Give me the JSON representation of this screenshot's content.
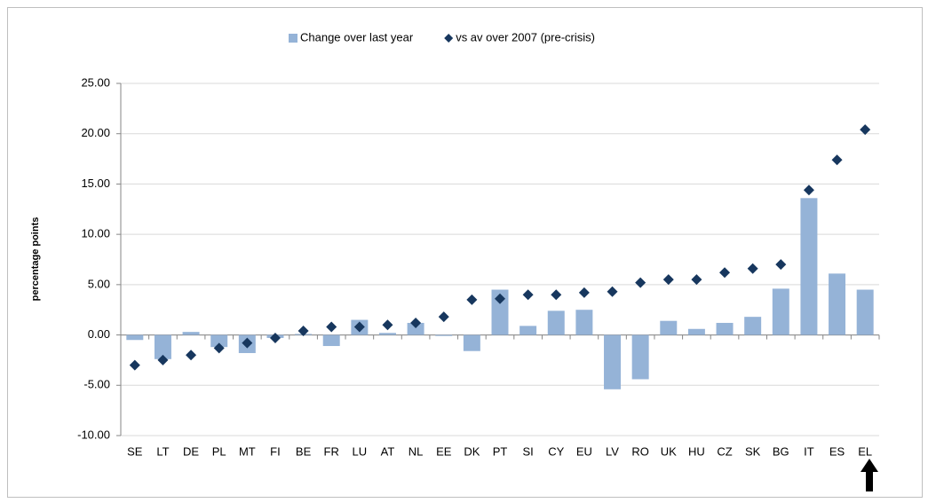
{
  "chart_data": {
    "type": "bar",
    "y_label": "percentage points",
    "categories": [
      "SE",
      "LT",
      "DE",
      "PL",
      "MT",
      "FI",
      "BE",
      "FR",
      "LU",
      "AT",
      "NL",
      "EE",
      "DK",
      "PT",
      "SI",
      "CY",
      "EU",
      "LV",
      "RO",
      "UK",
      "HU",
      "CZ",
      "SK",
      "BG",
      "IT",
      "ES",
      "EL"
    ],
    "series": [
      {
        "name": "Change over last year",
        "type": "bar",
        "color": "#95b3d7",
        "values": [
          -0.5,
          -2.4,
          0.3,
          -1.2,
          -1.8,
          -0.3,
          0.1,
          -1.1,
          1.5,
          0.2,
          1.2,
          -0.1,
          -1.6,
          4.5,
          0.9,
          2.4,
          2.5,
          -5.4,
          -4.4,
          1.4,
          0.6,
          1.2,
          1.8,
          4.6,
          13.6,
          6.1,
          4.5
        ]
      },
      {
        "name": "vs av over 2007 (pre-crisis)",
        "type": "scatter",
        "color": "#17375e",
        "values": [
          -3.0,
          -2.5,
          -2.0,
          -1.3,
          -0.8,
          -0.3,
          0.4,
          0.8,
          0.8,
          1.0,
          1.2,
          1.8,
          3.5,
          3.6,
          4.0,
          4.0,
          4.2,
          4.3,
          5.2,
          5.5,
          5.5,
          6.2,
          6.6,
          7.0,
          14.4,
          17.4,
          20.4
        ]
      }
    ],
    "ylim": [
      -10,
      25
    ],
    "yticks": [
      {
        "value": -10,
        "label": "-10.00"
      },
      {
        "value": -5,
        "label": "-5.00"
      },
      {
        "value": 0,
        "label": "0.00"
      },
      {
        "value": 5,
        "label": "5.00"
      },
      {
        "value": 10,
        "label": "10.00"
      },
      {
        "value": 15,
        "label": "15.00"
      },
      {
        "value": 20,
        "label": "20.00"
      },
      {
        "value": 25,
        "label": "25.00"
      }
    ],
    "grid": true,
    "legend": "top"
  }
}
